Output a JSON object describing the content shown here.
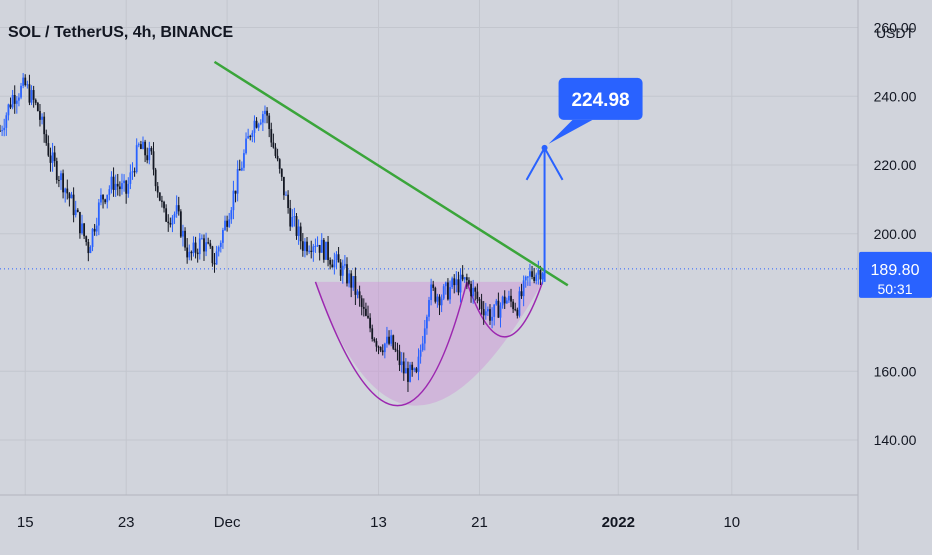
{
  "header": {
    "title": "SOL / TetherUS, 4h, BINANCE"
  },
  "colors": {
    "background": "#d1d4dc",
    "candle_up": "#2962ff",
    "candle_down": "#131722",
    "trendline": "#3aa53a",
    "cup_stroke": "#9c27b0",
    "cup_fill": "#ce93d8",
    "target_arrow": "#2962ff",
    "price_badge": "#2962ff",
    "grid": "#c3c6ce"
  },
  "chart_data": {
    "type": "candlestick",
    "y_axis_unit": "USDT",
    "ylim": [
      124,
      268
    ],
    "y_ticks": [
      "260.00",
      "240.00",
      "220.00",
      "200.00",
      "160.00",
      "140.00"
    ],
    "x_ticks": [
      "15",
      "23",
      "Dec",
      "13",
      "21",
      "2022",
      "10"
    ],
    "x_tick_dates": [
      "2021-11-15",
      "2021-11-23",
      "2021-12-01",
      "2021-12-13",
      "2021-12-21",
      "2022-01-01",
      "2022-01-10"
    ],
    "xlim": [
      "2021-11-13",
      "2022-01-20"
    ],
    "last_price": "189.80",
    "countdown": "50:31",
    "price_path": [
      [
        "2021-11-13",
        230
      ],
      [
        "2021-11-14",
        240
      ],
      [
        "2021-11-15",
        243
      ],
      [
        "2021-11-16",
        236
      ],
      [
        "2021-11-17",
        222
      ],
      [
        "2021-11-18",
        215
      ],
      [
        "2021-11-19",
        206
      ],
      [
        "2021-11-20",
        196
      ],
      [
        "2021-11-21",
        210
      ],
      [
        "2021-11-22",
        215
      ],
      [
        "2021-11-23",
        212
      ],
      [
        "2021-11-24",
        225
      ],
      [
        "2021-11-25",
        222
      ],
      [
        "2021-11-26",
        205
      ],
      [
        "2021-11-27",
        206
      ],
      [
        "2021-11-28",
        193
      ],
      [
        "2021-11-29",
        198
      ],
      [
        "2021-11-30",
        192
      ],
      [
        "2021-12-01",
        205
      ],
      [
        "2021-12-02",
        218
      ],
      [
        "2021-12-03",
        232
      ],
      [
        "2021-12-04",
        236
      ],
      [
        "2021-12-05",
        220
      ],
      [
        "2021-12-06",
        205
      ],
      [
        "2021-12-07",
        197
      ],
      [
        "2021-12-08",
        198
      ],
      [
        "2021-12-09",
        194
      ],
      [
        "2021-12-10",
        190
      ],
      [
        "2021-12-11",
        185
      ],
      [
        "2021-12-12",
        175
      ],
      [
        "2021-12-13",
        168
      ],
      [
        "2021-12-14",
        168
      ],
      [
        "2021-12-15",
        160
      ],
      [
        "2021-12-16",
        158
      ],
      [
        "2021-12-17",
        183
      ],
      [
        "2021-12-18",
        182
      ],
      [
        "2021-12-19",
        185
      ],
      [
        "2021-12-20",
        186
      ],
      [
        "2021-12-21",
        180
      ],
      [
        "2021-12-22",
        176
      ],
      [
        "2021-12-23",
        181
      ],
      [
        "2021-12-24",
        179
      ],
      [
        "2021-12-25",
        188
      ],
      [
        "2021-12-26",
        190
      ]
    ],
    "patterns": {
      "resistance_trendline": [
        [
          "2021-11-30",
          250
        ],
        [
          "2021-12-28",
          185
        ]
      ],
      "cup_rim": 186,
      "cup_low": 150
    },
    "target": {
      "label": "224.98",
      "value": 224.98,
      "from": 186
    }
  }
}
